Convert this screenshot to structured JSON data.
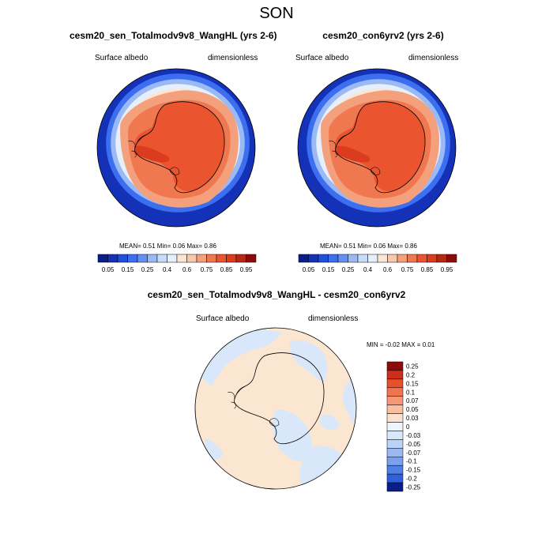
{
  "season": "SON",
  "panels": [
    {
      "title": "cesm20_sen_Totalmodv9v8_WangHL (yrs 2-6)",
      "left_label": "Surface albedo",
      "right_label": "dimensionless",
      "stats_text": "MEAN=   0.51  Min=   0.06  Max=   0.86"
    },
    {
      "title": "cesm20_con6yrv2 (yrs 2-6)",
      "left_label": "Surface albedo",
      "right_label": "dimensionless",
      "stats_text": "MEAN=   0.51  Min=   0.06  Max=   0.86"
    }
  ],
  "diff_panel": {
    "title": "cesm20_sen_Totalmodv9v8_WangHL - cesm20_con6yrv2",
    "left_label": "Surface albedo",
    "right_label": "dimensionless",
    "stats_text": "MIN =  -0.02 MAX =   0.01"
  },
  "colorbar_h": {
    "colors": [
      "#0a1e8a",
      "#1432b8",
      "#1e50dc",
      "#3c6ef0",
      "#6490f0",
      "#9bbaf5",
      "#c8dcfa",
      "#e6f0fc",
      "#fbe6d6",
      "#f8c8ab",
      "#f4a07c",
      "#f07850",
      "#ea5530",
      "#dc3c1e",
      "#b42814",
      "#8c0a0a"
    ],
    "labels": [
      "0.05",
      "0.15",
      "0.25",
      "0.4",
      "0.6",
      "0.75",
      "0.85",
      "0.95"
    ]
  },
  "colorbar_v": {
    "colors": [
      "#8c0a0a",
      "#cc2e1c",
      "#e8502c",
      "#f07450",
      "#f49878",
      "#f8bea0",
      "#fbe2d0",
      "#eef4fc",
      "#d8e8fa",
      "#bcd2f6",
      "#9cb8f2",
      "#7aa0ee",
      "#5080e6",
      "#3060dc",
      "#0a1e8a"
    ],
    "labels": [
      "0.25",
      "0.2",
      "0.15",
      "0.1",
      "0.07",
      "0.05",
      "0.03",
      "0",
      "-0.03",
      "-0.05",
      "-0.07",
      "-0.1",
      "-0.15",
      "-0.2",
      "-0.25"
    ]
  }
}
